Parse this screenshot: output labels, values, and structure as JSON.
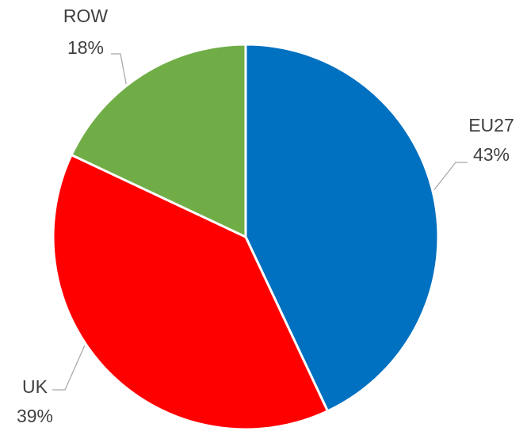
{
  "chart_data": {
    "type": "pie",
    "title": "",
    "slices": [
      {
        "label": "EU27",
        "value": 43,
        "display": "43%",
        "color": "#0070c0"
      },
      {
        "label": "UK",
        "value": 39,
        "display": "39%",
        "color": "#ff0000"
      },
      {
        "label": "ROW",
        "value": 18,
        "display": "18%",
        "color": "#70ad47"
      }
    ],
    "start_angle": "12 o'clock",
    "direction": "clockwise",
    "legend": "none",
    "data_labels": "outside with leader lines"
  }
}
